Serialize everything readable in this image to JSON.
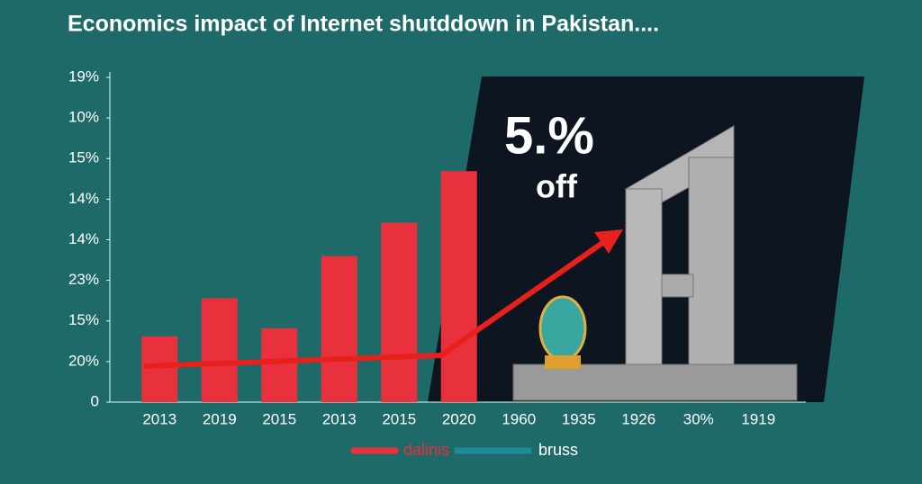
{
  "chart_data": {
    "type": "bar",
    "title": "Economics impact of Internet shutddown in Pakistan....",
    "annotations": [
      "5.%",
      "off"
    ],
    "categories": [
      "2013",
      "2019",
      "2015",
      "2013",
      "2015",
      "2020",
      "1960",
      "1935",
      "1926",
      "30%",
      "1919"
    ],
    "series": [
      {
        "name": "dalinis",
        "color": "#e8313c",
        "values": [
          1.62,
          2.56,
          1.82,
          3.6,
          4.42,
          5.69,
          null,
          null,
          null,
          null,
          null
        ]
      },
      {
        "name": "bruss",
        "color": "#1f8a99",
        "values": [
          null,
          null,
          null,
          null,
          null,
          null,
          null,
          null,
          null,
          null,
          null
        ]
      }
    ],
    "ylim": [
      0,
      8
    ],
    "yticks": [
      0,
      {
        "value": 1,
        "label": "20%"
      },
      {
        "value": 2,
        "label": "15%"
      },
      {
        "value": 3,
        "label": "23%"
      },
      {
        "value": 4,
        "label": "14%"
      },
      {
        "value": 5,
        "label": "14%"
      },
      {
        "value": 6,
        "label": "15%"
      },
      {
        "value": 7,
        "label": "10%"
      },
      {
        "value": 8,
        "label": "19%"
      }
    ]
  }
}
